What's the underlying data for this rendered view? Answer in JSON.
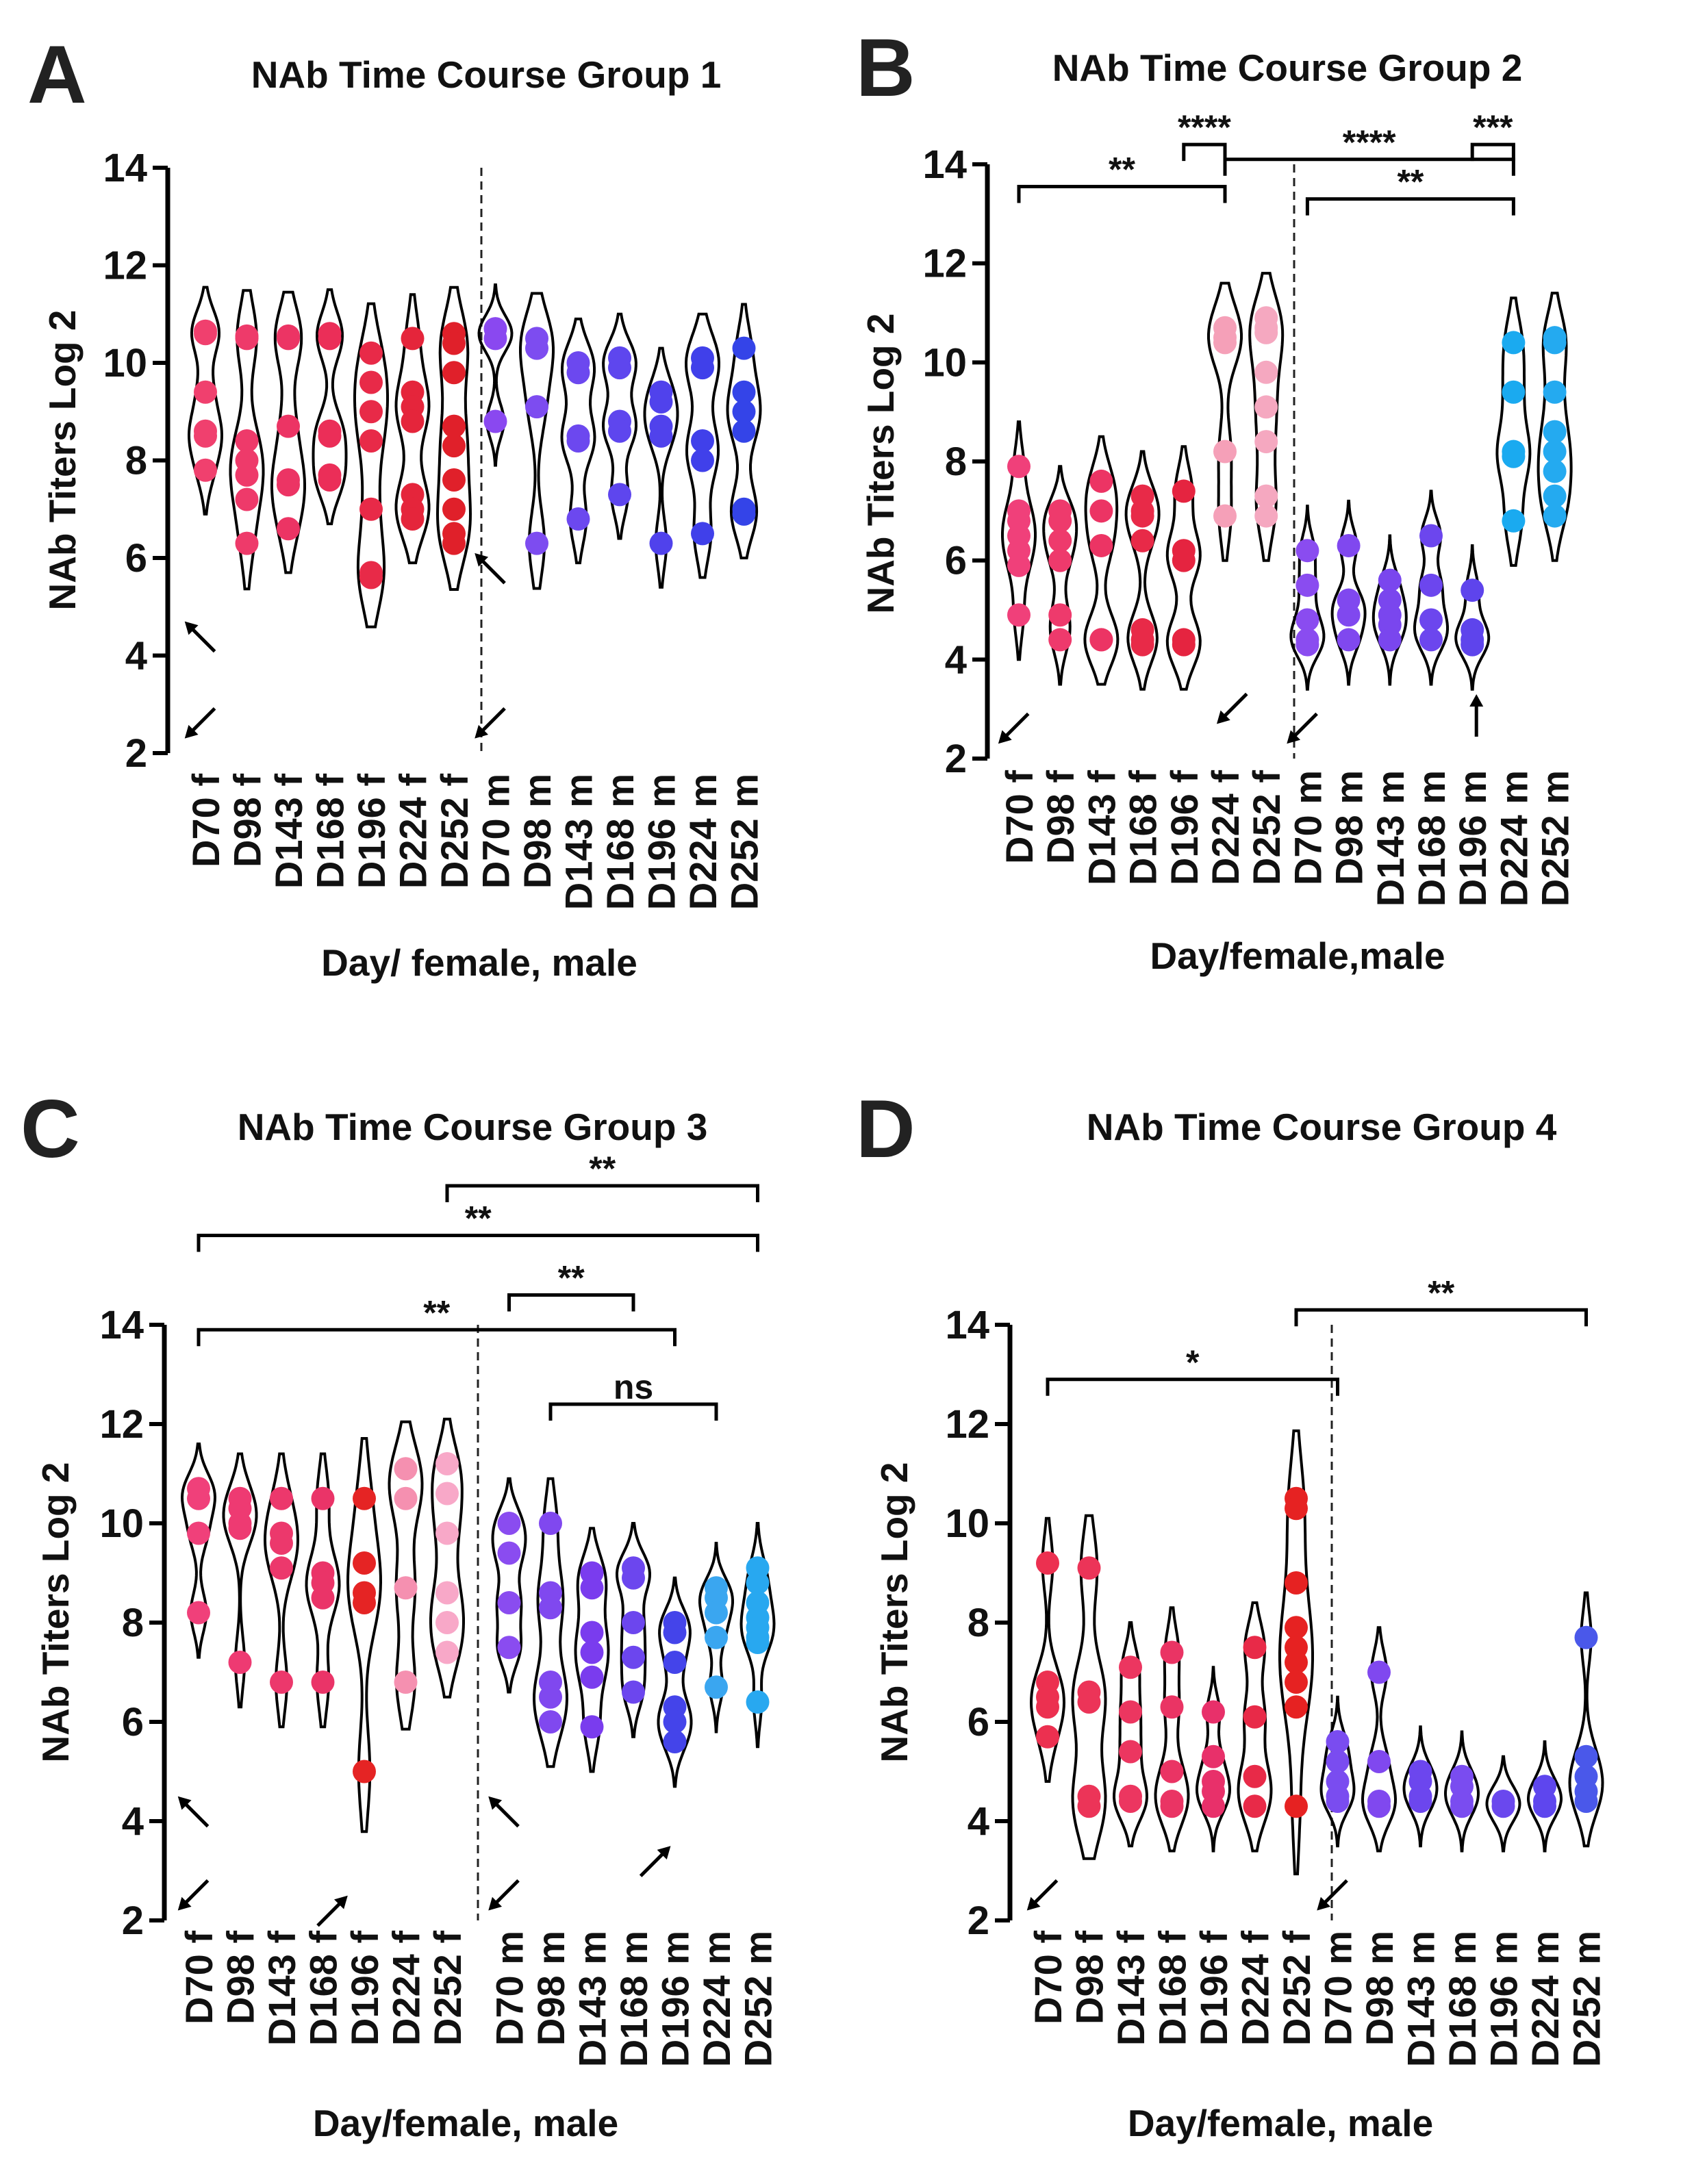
{
  "figure": {
    "y_axis": {
      "ticks": [
        2,
        4,
        6,
        8,
        10,
        12,
        14
      ],
      "ylim": [
        2,
        14
      ]
    }
  },
  "chart_data": [
    {
      "panel": "A",
      "type": "violin",
      "title": "NAb Time Course Group 1",
      "ylabel": "NAb Titers Log 2",
      "xlabel": "Day/ female, male",
      "ylim": [
        2,
        14
      ],
      "categories": [
        "D70 f",
        "D98 f",
        "D143 f",
        "D168 f",
        "D196 f",
        "D224 f",
        "D252 f",
        "D70 m",
        "D98 m",
        "D143 m",
        "D168 m",
        "D196 m",
        "D224 m",
        "D252 m"
      ],
      "dot_colors": [
        "#f0406e",
        "#ee3a6a",
        "#ec3464",
        "#eb2e58",
        "#e82a48",
        "#e5253b",
        "#e0202a",
        "#8a48f0",
        "#7d4cf0",
        "#6c48ef",
        "#5e46ee",
        "#5042ec",
        "#4040ea",
        "#3444e8"
      ],
      "values": [
        [
          10.65,
          10.6,
          9.4,
          8.6,
          8.5,
          7.8
        ],
        [
          10.55,
          10.5,
          8.4,
          8.0,
          7.7,
          7.2,
          6.3
        ],
        [
          10.55,
          10.5,
          8.7,
          7.6,
          7.5,
          6.6
        ],
        [
          10.6,
          10.5,
          8.6,
          8.5,
          7.7,
          7.6
        ],
        [
          10.2,
          9.6,
          9.0,
          8.4,
          7.0,
          5.7,
          5.6
        ],
        [
          10.5,
          9.4,
          9.1,
          8.8,
          7.3,
          7.0,
          6.8
        ],
        [
          10.6,
          10.4,
          9.8,
          8.7,
          8.3,
          7.6,
          7.0,
          6.5,
          6.3
        ],
        [
          10.7,
          10.5,
          8.8
        ],
        [
          10.5,
          10.3,
          9.1,
          6.3
        ],
        [
          10.0,
          9.8,
          8.5,
          8.4,
          6.8
        ],
        [
          10.1,
          9.9,
          8.8,
          8.6,
          7.3
        ],
        [
          9.4,
          9.2,
          8.7,
          8.5,
          6.3
        ],
        [
          10.1,
          9.9,
          8.4,
          8.0,
          6.5
        ],
        [
          10.3,
          9.4,
          9.0,
          8.6,
          7.0,
          6.9
        ]
      ],
      "arrows": [
        {
          "category_index": 0,
          "y": 4.7,
          "direction": "up-left",
          "offset": -0.5
        },
        {
          "category_index": 0,
          "y": 2.3,
          "direction": "down-left",
          "offset": -0.5
        },
        {
          "category_index": 7,
          "y": 6.1,
          "direction": "up-left",
          "offset": -0.5
        },
        {
          "category_index": 7,
          "y": 2.3,
          "direction": "down-left",
          "offset": -0.5
        }
      ],
      "brackets": []
    },
    {
      "panel": "B",
      "type": "violin",
      "title": "NAb Time Course Group 2",
      "ylabel": "NAb Titers Log 2",
      "xlabel": "Day/female,male",
      "ylim": [
        2,
        14
      ],
      "categories": [
        "D70 f",
        "D98 f",
        "D143 f",
        "D168 f",
        "D196 f",
        "D224 f",
        "D252 f",
        "D70 m",
        "D98 m",
        "D143 m",
        "D168 m",
        "D196 m",
        "D224 m",
        "D252 m"
      ],
      "dot_colors": [
        "#f0407a",
        "#ee3a6c",
        "#ec3464",
        "#e82a48",
        "#e52440",
        "#f5a0b8",
        "#f5a8c0",
        "#8a4cf0",
        "#8048ef",
        "#7a46ee",
        "#6c46ee",
        "#5e44ec",
        "#1aaaf0",
        "#24aaf0"
      ],
      "values": [
        [
          7.9,
          7.0,
          6.8,
          6.5,
          6.2,
          5.9,
          4.9
        ],
        [
          7.0,
          6.8,
          6.4,
          6.0,
          4.9,
          4.4
        ],
        [
          7.6,
          7.0,
          6.3,
          4.4,
          4.4
        ],
        [
          7.3,
          7.0,
          6.9,
          6.4,
          4.6,
          4.4,
          4.3
        ],
        [
          7.4,
          6.2,
          6.0,
          4.4,
          4.3
        ],
        [
          10.7,
          10.5,
          10.4,
          8.2,
          6.9
        ],
        [
          10.9,
          10.7,
          10.6,
          9.8,
          9.1,
          8.4,
          7.3,
          6.9
        ],
        [
          6.2,
          5.5,
          4.8,
          4.4,
          4.3
        ],
        [
          6.3,
          5.2,
          4.9,
          4.4
        ],
        [
          5.6,
          5.2,
          4.9,
          4.7,
          4.4
        ],
        [
          6.5,
          5.5,
          4.8,
          4.4
        ],
        [
          5.4,
          4.6,
          4.4,
          4.3
        ],
        [
          10.4,
          9.4,
          8.2,
          8.1,
          6.8
        ],
        [
          10.5,
          10.4,
          9.4,
          8.6,
          8.2,
          7.8,
          7.3,
          6.9
        ]
      ],
      "arrows": [
        {
          "category_index": 0,
          "y": 2.3,
          "direction": "down-left",
          "offset": -0.5
        },
        {
          "category_index": 5,
          "y": 2.7,
          "direction": "down-left",
          "offset": -0.2
        },
        {
          "category_index": 7,
          "y": 2.3,
          "direction": "down-left",
          "offset": -0.5
        },
        {
          "category_index": 11,
          "y": 3.3,
          "direction": "up",
          "offset": 0.1
        }
      ],
      "brackets": [
        {
          "from": 0,
          "to": 5,
          "y": 13.55,
          "label": "**"
        },
        {
          "from": 4,
          "to": 5,
          "y": 14.4,
          "label": "****"
        },
        {
          "from": 5,
          "to": 12,
          "y": 14.1,
          "label": "****"
        },
        {
          "from": 11,
          "to": 12,
          "y": 14.4,
          "label": "***"
        },
        {
          "from": 7,
          "to": 12,
          "y": 13.3,
          "label": "**"
        }
      ]
    },
    {
      "panel": "C",
      "type": "violin",
      "title": "NAb Time Course Group 3",
      "ylabel": "NAb Titers Log 2",
      "xlabel": "Day/female, male",
      "ylim": [
        2,
        14
      ],
      "categories": [
        "D70 f",
        "D98 f",
        "D143 f",
        "D168 f",
        "D196 f",
        "D224 f",
        "D252 f",
        "D70 m",
        "D98 m",
        "D143 m",
        "D168 m",
        "D196 m",
        "D224 m",
        "D252 m"
      ],
      "dot_colors": [
        "#f0407a",
        "#ee3a72",
        "#ec386c",
        "#ea3468",
        "#e52424",
        "#f590b0",
        "#f8a8c8",
        "#8a4cf0",
        "#8048ef",
        "#7a3cee",
        "#6c46ee",
        "#4444ea",
        "#3aa6f0",
        "#28a8f0"
      ],
      "values": [
        [
          10.7,
          10.5,
          9.8,
          8.2
        ],
        [
          10.5,
          10.3,
          10.0,
          9.9,
          7.2
        ],
        [
          10.5,
          9.8,
          9.6,
          9.1,
          6.8
        ],
        [
          10.5,
          9.0,
          8.8,
          8.5,
          6.8
        ],
        [
          10.5,
          9.2,
          8.6,
          8.4,
          5.0
        ],
        [
          11.1,
          10.5,
          8.7,
          6.8
        ],
        [
          11.2,
          10.6,
          9.8,
          8.6,
          8.0,
          7.4
        ],
        [
          10.0,
          9.4,
          8.4,
          7.5
        ],
        [
          10.0,
          8.6,
          8.3,
          6.8,
          6.5,
          6.0
        ],
        [
          9.0,
          8.7,
          7.8,
          7.4,
          6.9,
          5.9
        ],
        [
          9.1,
          8.9,
          8.0,
          7.3,
          6.6
        ],
        [
          8.0,
          7.8,
          7.2,
          6.3,
          6.0,
          5.6
        ],
        [
          8.7,
          8.5,
          8.2,
          7.7,
          6.7
        ],
        [
          9.1,
          8.8,
          8.4,
          8.1,
          7.9,
          7.7,
          7.6,
          6.4
        ]
      ],
      "arrows": [
        {
          "category_index": 0,
          "y": 4.5,
          "direction": "up-left",
          "offset": -0.5
        },
        {
          "category_index": 0,
          "y": 2.2,
          "direction": "down-left",
          "offset": -0.5
        },
        {
          "category_index": 4,
          "y": 2.5,
          "direction": "up-right",
          "offset": -0.4
        },
        {
          "category_index": 7,
          "y": 4.5,
          "direction": "up-left",
          "offset": -0.5
        },
        {
          "category_index": 7,
          "y": 2.2,
          "direction": "down-left",
          "offset": -0.5
        },
        {
          "category_index": 11,
          "y": 3.5,
          "direction": "up-right",
          "offset": -0.1
        }
      ],
      "brackets": [
        {
          "from": 6,
          "to": 13,
          "y": 16.8,
          "label": "**"
        },
        {
          "from": 0,
          "to": 13,
          "y": 15.8,
          "label": "**"
        },
        {
          "from": 7,
          "to": 10,
          "y": 14.6,
          "label": "**"
        },
        {
          "from": 0,
          "to": 11,
          "y": 13.9,
          "label": "**"
        },
        {
          "from": 8,
          "to": 12,
          "y": 12.4,
          "label": "ns"
        }
      ]
    },
    {
      "panel": "D",
      "type": "violin",
      "title": "NAb Time Course Group 4",
      "ylabel": "NAb Titers Log 2",
      "xlabel": "Day/female, male",
      "ylim": [
        2,
        14
      ],
      "categories": [
        "D70 f",
        "D98 f",
        "D143 f",
        "D168 f",
        "D196 f",
        "D224 f",
        "D252 f",
        "D70 m",
        "D98 m",
        "D143 m",
        "D168 m",
        "D196 m",
        "D224 m",
        "D252 m"
      ],
      "dot_colors": [
        "#ec3050",
        "#ec3458",
        "#ec3660",
        "#ea3464",
        "#e8306a",
        "#e82a48",
        "#e62222",
        "#7a4cf0",
        "#8048ef",
        "#6c46ee",
        "#7a4cf0",
        "#6a48ee",
        "#5e46ee",
        "#4a58ea"
      ],
      "values": [
        [
          9.2,
          6.8,
          6.5,
          6.3,
          5.7
        ],
        [
          9.1,
          6.6,
          6.4,
          4.5,
          4.3
        ],
        [
          7.1,
          6.2,
          5.4,
          4.5,
          4.4
        ],
        [
          7.4,
          6.3,
          5.0,
          4.4,
          4.3
        ],
        [
          6.2,
          5.3,
          4.8,
          4.6,
          4.3
        ],
        [
          7.5,
          6.1,
          4.9,
          4.3
        ],
        [
          10.5,
          10.3,
          8.8,
          7.9,
          7.5,
          7.2,
          6.8,
          6.3,
          4.3
        ],
        [
          5.6,
          5.2,
          4.8,
          4.5,
          4.4
        ],
        [
          7.0,
          5.2,
          4.4,
          4.3
        ],
        [
          5.0,
          4.8,
          4.5,
          4.4
        ],
        [
          4.9,
          4.7,
          4.4,
          4.3
        ],
        [
          4.4,
          4.3
        ],
        [
          4.7,
          4.4,
          4.3
        ],
        [
          7.7,
          5.3,
          4.9,
          4.6,
          4.4
        ]
      ],
      "arrows": [
        {
          "category_index": 0,
          "y": 2.2,
          "direction": "down-left",
          "offset": -0.5
        },
        {
          "category_index": 7,
          "y": 2.2,
          "direction": "down-left",
          "offset": -0.5
        }
      ],
      "brackets": [
        {
          "from": 6,
          "to": 13,
          "y": 14.3,
          "label": "**"
        },
        {
          "from": 0,
          "to": 7,
          "y": 12.9,
          "label": "*"
        }
      ]
    }
  ]
}
